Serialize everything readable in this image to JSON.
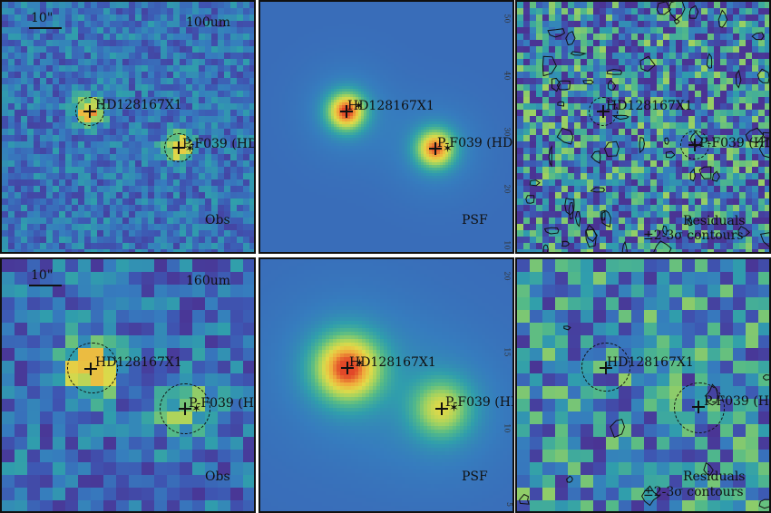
{
  "panels": [
    {
      "id": "p100-obs",
      "corner": "100um",
      "bottom_label": "Obs",
      "scale": "10\"",
      "type": "obs"
    },
    {
      "id": "p100-psf",
      "bottom_label": "PSF",
      "type": "psf"
    },
    {
      "id": "p100-res",
      "bottom_label": "Residuals",
      "bottom_label2": "±2-3σ contours",
      "type": "res"
    },
    {
      "id": "p160-obs",
      "corner": "160um",
      "bottom_label": "Obs",
      "scale": "10\"",
      "type": "obs"
    },
    {
      "id": "p160-psf",
      "bottom_label": "PSF",
      "type": "psf"
    },
    {
      "id": "p160-res",
      "bottom_label": "Residuals",
      "bottom_label2": "±2-3σ contours",
      "type": "res"
    }
  ],
  "sources": {
    "primary": "HD128167X1",
    "secondary": "P-F039 (HD"
  },
  "axis_ticks_100": [
    "50",
    "40",
    "30",
    "20",
    "10"
  ],
  "axis_ticks_160": [
    "20",
    "15",
    "10",
    "5"
  ],
  "colors": {
    "background_blue": "#3f6fb8",
    "peak_red": "#e0452a",
    "mid_yellow": "#e7d84a",
    "low_purple": "#4a3f9a",
    "border": "#111111"
  }
}
